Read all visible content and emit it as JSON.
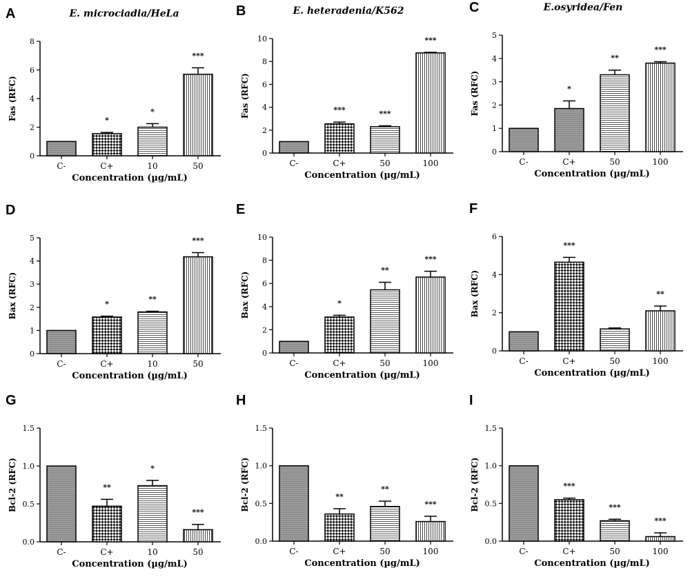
{
  "figure": {
    "x_axis_title": "Concentration (µg/mL)"
  },
  "chart_data": [
    {
      "panel": "A",
      "type": "bar",
      "title": "E. microciadia/HeLa",
      "ylabel": "Fas (RFC)",
      "xlabel": "Concentration (µg/mL)",
      "categories": [
        "C-",
        "C+",
        "10",
        "50"
      ],
      "values": [
        1.0,
        1.55,
        2.0,
        5.7
      ],
      "errors": [
        0.0,
        0.08,
        0.25,
        0.45
      ],
      "significance": [
        "",
        "*",
        "*",
        "***"
      ],
      "ylim": [
        0,
        8
      ],
      "yticks": [
        "0",
        "2",
        "4",
        "6",
        "8"
      ],
      "ytick_values": [
        0,
        2,
        4,
        6,
        8
      ],
      "patterns": [
        "grey",
        "check",
        "hlines",
        "vlines"
      ]
    },
    {
      "panel": "B",
      "type": "bar",
      "title": "E. heteradenia/K562",
      "ylabel": "Fas (RFC)",
      "xlabel": "Concentration (µg/mL)",
      "categories": [
        "C-",
        "C+",
        "50",
        "100"
      ],
      "values": [
        1.0,
        2.55,
        2.3,
        8.75
      ],
      "errors": [
        0.0,
        0.15,
        0.08,
        0.05
      ],
      "significance": [
        "",
        "***",
        "***",
        "***"
      ],
      "ylim": [
        0,
        10
      ],
      "yticks": [
        "0",
        "2",
        "4",
        "6",
        "8",
        "10"
      ],
      "ytick_values": [
        0,
        2,
        4,
        6,
        8,
        10
      ],
      "patterns": [
        "grey",
        "check",
        "hlines",
        "vlines"
      ]
    },
    {
      "panel": "C",
      "type": "bar",
      "title": "E.osyridea/Fen",
      "ylabel": "Fas (RFC)",
      "xlabel": "Concentration (µg/mL)",
      "categories": [
        "C-",
        "C+",
        "50",
        "100"
      ],
      "values": [
        1.0,
        1.85,
        3.3,
        3.8
      ],
      "errors": [
        0.0,
        0.33,
        0.2,
        0.06
      ],
      "significance": [
        "",
        "*",
        "**",
        "***"
      ],
      "ylim": [
        0,
        5
      ],
      "yticks": [
        "0",
        "1",
        "2",
        "3",
        "4",
        "5"
      ],
      "ytick_values": [
        0,
        1,
        2,
        3,
        4,
        5
      ],
      "patterns": [
        "grey",
        "grey",
        "hlines",
        "vlines"
      ]
    },
    {
      "panel": "D",
      "type": "bar",
      "title": "",
      "ylabel": "Bax (RFC)",
      "xlabel": "Concentration (µg/mL)",
      "categories": [
        "C-",
        "C+",
        "10",
        "50"
      ],
      "values": [
        1.0,
        1.58,
        1.8,
        4.18
      ],
      "errors": [
        0.0,
        0.04,
        0.03,
        0.18
      ],
      "significance": [
        "",
        "*",
        "**",
        "***"
      ],
      "ylim": [
        0,
        5
      ],
      "yticks": [
        "0",
        "1",
        "2",
        "3",
        "4",
        "5"
      ],
      "ytick_values": [
        0,
        1,
        2,
        3,
        4,
        5
      ],
      "patterns": [
        "grey",
        "check",
        "hlines",
        "vlines"
      ]
    },
    {
      "panel": "E",
      "type": "bar",
      "title": "",
      "ylabel": "Bax (RFC)",
      "xlabel": "Concentration (µg/mL)",
      "categories": [
        "C-",
        "C+",
        "50",
        "100"
      ],
      "values": [
        1.0,
        3.1,
        5.45,
        6.55
      ],
      "errors": [
        0.0,
        0.15,
        0.65,
        0.5
      ],
      "significance": [
        "",
        "*",
        "**",
        "***"
      ],
      "ylim": [
        0,
        10
      ],
      "yticks": [
        "0",
        "2",
        "4",
        "6",
        "8",
        "10"
      ],
      "ytick_values": [
        0,
        2,
        4,
        6,
        8,
        10
      ],
      "patterns": [
        "grey",
        "check",
        "hlines",
        "vlines"
      ]
    },
    {
      "panel": "F",
      "type": "bar",
      "title": "",
      "ylabel": "Bax (RFC)",
      "xlabel": "Concentration (µg/mL)",
      "categories": [
        "C-",
        "C+",
        "50",
        "100"
      ],
      "values": [
        1.0,
        4.65,
        1.15,
        2.1
      ],
      "errors": [
        0.0,
        0.25,
        0.05,
        0.25
      ],
      "significance": [
        "",
        "***",
        "",
        "**"
      ],
      "ylim": [
        0,
        6
      ],
      "yticks": [
        "0",
        "2",
        "4",
        "6"
      ],
      "ytick_values": [
        0,
        2,
        4,
        6
      ],
      "patterns": [
        "grey",
        "check",
        "hlines",
        "vlines"
      ]
    },
    {
      "panel": "G",
      "type": "bar",
      "title": "",
      "ylabel": "Bcl-2 (RFC)",
      "xlabel": "Concentration (µg/mL)",
      "categories": [
        "C-",
        "C+",
        "10",
        "50"
      ],
      "values": [
        1.0,
        0.47,
        0.74,
        0.16
      ],
      "errors": [
        0.0,
        0.09,
        0.07,
        0.07
      ],
      "significance": [
        "",
        "**",
        "*",
        "***"
      ],
      "ylim": [
        0,
        1.5
      ],
      "yticks": [
        "0.0",
        "0.5",
        "1.0",
        "1.5"
      ],
      "ytick_values": [
        0,
        0.5,
        1.0,
        1.5
      ],
      "patterns": [
        "grey",
        "check",
        "hlines",
        "vlines"
      ]
    },
    {
      "panel": "H",
      "type": "bar",
      "title": "",
      "ylabel": "Bcl-2 (RFC)",
      "xlabel": "Concentration (µg/mL)",
      "categories": [
        "C-",
        "C+",
        "50",
        "100"
      ],
      "values": [
        1.0,
        0.36,
        0.46,
        0.26
      ],
      "errors": [
        0.0,
        0.07,
        0.07,
        0.07
      ],
      "significance": [
        "",
        "**",
        "**",
        "***"
      ],
      "ylim": [
        0,
        1.5
      ],
      "yticks": [
        "0.0",
        "0.5",
        "1.0",
        "1.5"
      ],
      "ytick_values": [
        0,
        0.5,
        1.0,
        1.5
      ],
      "patterns": [
        "grey",
        "check",
        "hlines",
        "vlines"
      ]
    },
    {
      "panel": "I",
      "type": "bar",
      "title": "",
      "ylabel": "Bcl-2 (RFC)",
      "xlabel": "Concentration (µg/mL)",
      "categories": [
        "C-",
        "C+",
        "50",
        "100"
      ],
      "values": [
        1.0,
        0.55,
        0.27,
        0.06
      ],
      "errors": [
        0.0,
        0.02,
        0.02,
        0.05
      ],
      "significance": [
        "",
        "***",
        "***",
        "***"
      ],
      "ylim": [
        0,
        1.5
      ],
      "yticks": [
        "0.0",
        "0.5",
        "1.0",
        "1.5"
      ],
      "ytick_values": [
        0,
        0.5,
        1.0,
        1.5
      ],
      "patterns": [
        "grey",
        "check",
        "hlines",
        "vlines"
      ]
    }
  ]
}
